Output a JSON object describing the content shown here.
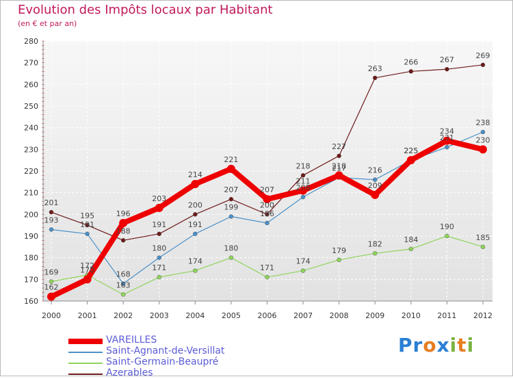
{
  "chart_data": {
    "type": "line",
    "title": "Evolution des Impôts locaux par Habitant",
    "subtitle": "(en € et par an)",
    "xlabel": "",
    "ylabel": "",
    "x": [
      "2000",
      "2001",
      "2002",
      "2003",
      "2004",
      "2005",
      "2006",
      "2007",
      "2008",
      "2009",
      "2010",
      "2011",
      "2012"
    ],
    "ylim": [
      160,
      280
    ],
    "yticks": [
      160,
      170,
      180,
      190,
      200,
      210,
      220,
      230,
      240,
      250,
      260,
      270,
      280
    ],
    "grid": true,
    "series": [
      {
        "name": "VAREILLES",
        "color": "#ee0000",
        "values": [
          162,
          170,
          196,
          203,
          214,
          221,
          207,
          211,
          218,
          209,
          225,
          234,
          230
        ]
      },
      {
        "name": "Saint-Agnant-de-Versillat",
        "color": "#4a90c8",
        "values": [
          193,
          191,
          168,
          180,
          191,
          199,
          196,
          208,
          217,
          216,
          225,
          231,
          238
        ]
      },
      {
        "name": "Saint-Germain-Beaupré",
        "color": "#8fd45a",
        "values": [
          169,
          172,
          163,
          171,
          174,
          180,
          171,
          174,
          179,
          182,
          184,
          190,
          185
        ]
      },
      {
        "name": "Azerables",
        "color": "#6e1a1a",
        "values": [
          201,
          195,
          188,
          191,
          200,
          207,
          200,
          218,
          227,
          263,
          266,
          267,
          269
        ]
      }
    ]
  },
  "brand": {
    "logo_text": "Proxiti"
  }
}
